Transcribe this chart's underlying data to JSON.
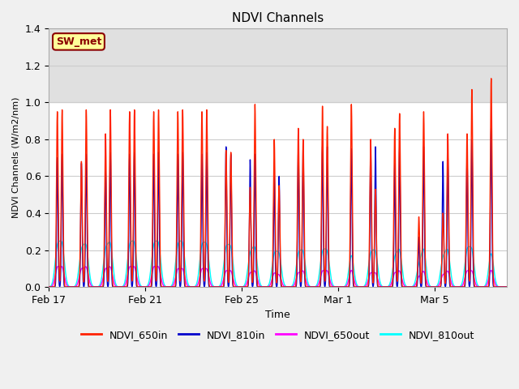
{
  "title": "NDVI Channels",
  "xlabel": "Time",
  "ylabel": "NDVI Channels (W/m2/nm)",
  "ylim": [
    0.0,
    1.4
  ],
  "yticks": [
    0.0,
    0.2,
    0.4,
    0.6,
    0.8,
    1.0,
    1.2,
    1.4
  ],
  "xtick_labels": [
    "Feb 17",
    "Feb 21",
    "Feb 25",
    "Mar 1",
    "Mar 5"
  ],
  "xtick_positions": [
    0,
    4,
    8,
    12,
    16
  ],
  "xlim": [
    0,
    19
  ],
  "shaded_region": [
    1.0,
    1.4
  ],
  "shaded_color": "#e0e0e0",
  "colors": {
    "NDVI_650in": "#ff2200",
    "NDVI_810in": "#0000cc",
    "NDVI_650out": "#ff00ff",
    "NDVI_810out": "#00ffff"
  },
  "label_box_text": "SW_met",
  "label_box_facecolor": "#ffff99",
  "label_box_edgecolor": "#8b0000",
  "label_box_textcolor": "#8b0000",
  "bg_color": "#f0f0f0",
  "plot_bg_color": "#ffffff",
  "grid_color": "#cccccc",
  "n_days": 19,
  "peak_650in_a": [
    0.95,
    0.68,
    0.83,
    0.95,
    0.95,
    0.95,
    0.95,
    0.74,
    0.54,
    0.8,
    0.86,
    0.98,
    0.0,
    0.8,
    0.86,
    0.38,
    0.4,
    0.83,
    1.13
  ],
  "peak_650in_b": [
    0.96,
    0.96,
    0.96,
    0.96,
    0.96,
    0.96,
    0.96,
    0.73,
    0.99,
    0.55,
    0.8,
    0.87,
    0.99,
    0.53,
    0.94,
    0.95,
    0.83,
    1.07,
    0.0
  ],
  "peak_810in_a": [
    0.7,
    0.67,
    0.64,
    0.72,
    0.72,
    0.72,
    0.72,
    0.76,
    0.69,
    0.6,
    0.75,
    0.76,
    0.0,
    0.75,
    0.67,
    0.27,
    0.68,
    0.71,
    0.86
  ],
  "peak_810in_b": [
    0.72,
    0.72,
    0.73,
    0.73,
    0.73,
    0.73,
    0.73,
    0.72,
    0.72,
    0.6,
    0.76,
    0.76,
    0.75,
    0.76,
    0.76,
    0.76,
    0.71,
    0.8,
    0.0
  ],
  "peak_650out_a": [
    0.1,
    0.09,
    0.09,
    0.1,
    0.1,
    0.09,
    0.09,
    0.08,
    0.07,
    0.07,
    0.07,
    0.08,
    0.0,
    0.07,
    0.07,
    0.05,
    0.06,
    0.08,
    0.09
  ],
  "peak_650out_b": [
    0.1,
    0.1,
    0.1,
    0.1,
    0.1,
    0.09,
    0.09,
    0.08,
    0.08,
    0.06,
    0.08,
    0.08,
    0.09,
    0.07,
    0.08,
    0.08,
    0.08,
    0.08,
    0.0
  ],
  "peak_810out_a": [
    0.2,
    0.18,
    0.18,
    0.2,
    0.2,
    0.2,
    0.2,
    0.19,
    0.16,
    0.16,
    0.16,
    0.17,
    0.0,
    0.16,
    0.14,
    0.1,
    0.14,
    0.18,
    0.18
  ],
  "peak_810out_b": [
    0.21,
    0.2,
    0.21,
    0.21,
    0.21,
    0.21,
    0.2,
    0.19,
    0.19,
    0.16,
    0.17,
    0.17,
    0.17,
    0.17,
    0.18,
    0.19,
    0.18,
    0.18,
    0.0
  ]
}
